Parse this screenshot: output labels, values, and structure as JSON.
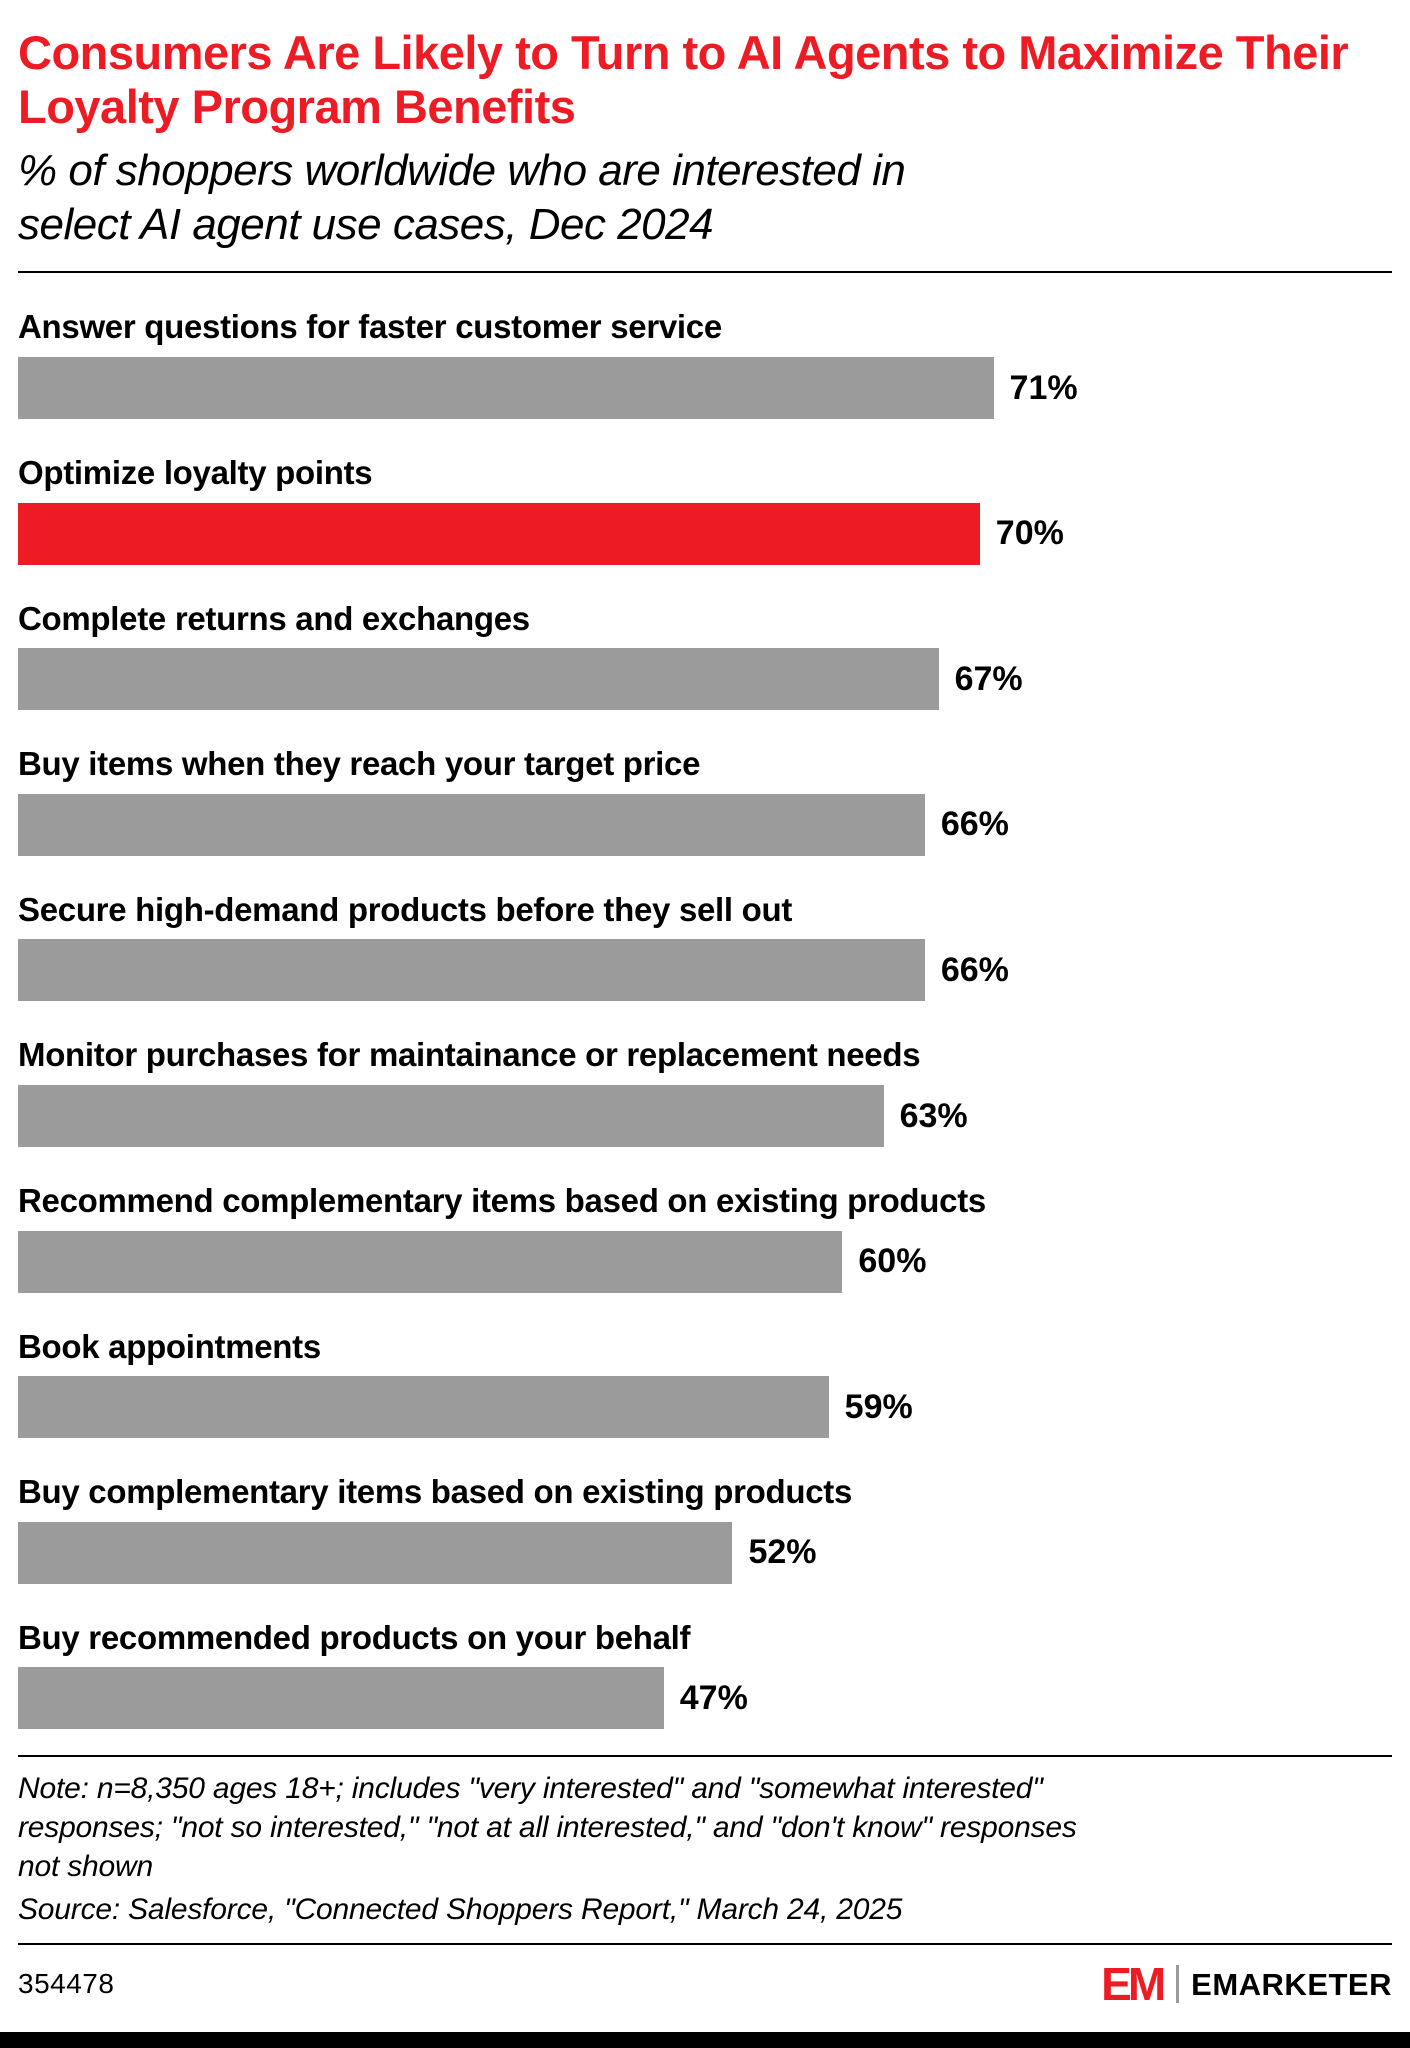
{
  "header": {
    "title": "Consumers Are Likely to Turn to AI Agents to Maximize Their Loyalty Program Benefits",
    "subtitle": "% of shoppers worldwide who are interested in select AI agent use cases, Dec 2024"
  },
  "chart_data": {
    "type": "bar",
    "orientation": "horizontal",
    "unit": "%",
    "xlim": [
      0,
      100
    ],
    "categories": [
      "Answer questions for faster customer service",
      "Optimize loyalty points",
      "Complete returns and exchanges",
      "Buy items when they reach your target price",
      "Secure high-demand products before they sell out",
      "Monitor purchases for maintainance or replacement needs",
      "Recommend complementary items based on existing products",
      "Book appointments",
      "Buy complementary items based on existing products",
      "Buy recommended products on your behalf"
    ],
    "values": [
      71,
      70,
      67,
      66,
      66,
      63,
      60,
      59,
      52,
      47
    ],
    "highlight_index": 1,
    "colors": {
      "bar": "#9b9b9b",
      "highlight": "#ed1c24",
      "title": "#ed1c24"
    },
    "value_label_format": "{value}%",
    "legend": "none",
    "grid": false
  },
  "footer": {
    "note": "Note: n=8,350 ages 18+; includes \"very interested\" and \"somewhat interested\" responses; \"not so interested,\" \"not at all interested,\" and \"don't know\" responses not shown",
    "source": "Source: Salesforce, \"Connected Shoppers Report,\" March 24, 2025",
    "chart_id": "354478",
    "brand": {
      "mark": "EM",
      "name": "EMARKETER"
    }
  }
}
